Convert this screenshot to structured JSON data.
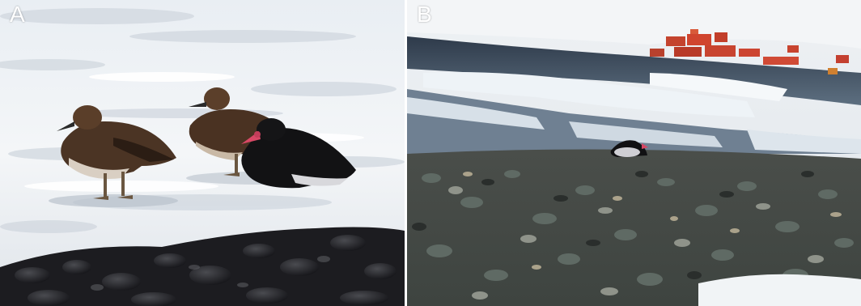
{
  "figure": {
    "panels": [
      {
        "label": "A"
      },
      {
        "label": "B"
      }
    ]
  }
}
